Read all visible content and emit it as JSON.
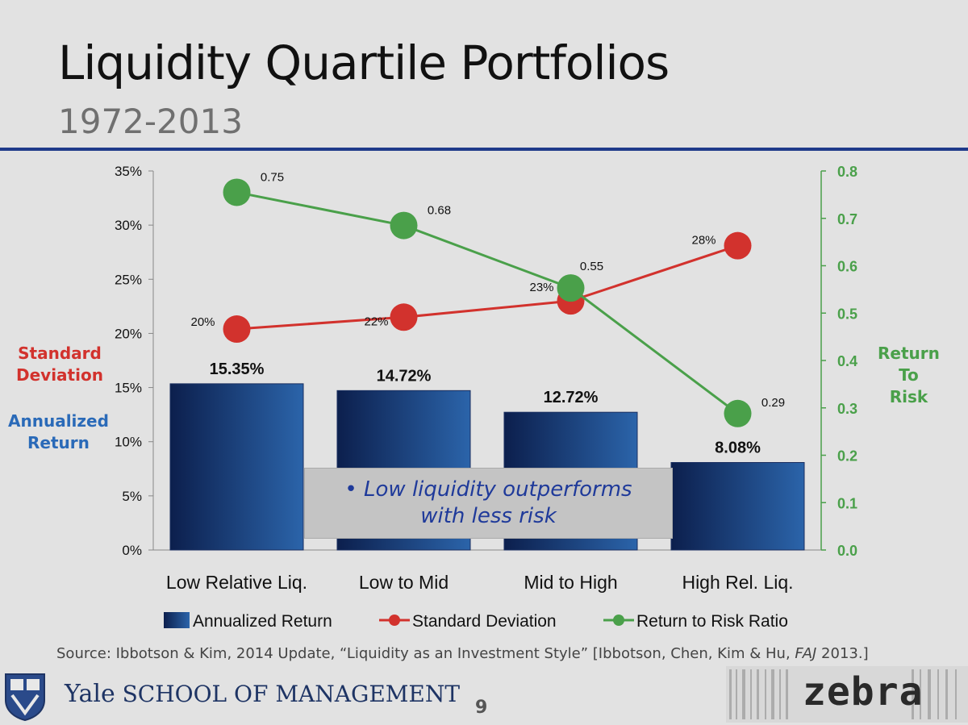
{
  "header": {
    "title": "Liquidity Quartile Portfolios",
    "subtitle": "1972-2013"
  },
  "side_labels": {
    "std_line1": "Standard",
    "std_line2": "Deviation",
    "ann_line1": "Annualized",
    "ann_line2": "Return",
    "rtr_line1": "Return",
    "rtr_line2": "To",
    "rtr_line3": "Risk"
  },
  "callout": {
    "line1": "• Low liquidity outperforms",
    "line2": "with less risk"
  },
  "footer": {
    "source_text": "Source: Ibbotson & Kim, 2014 Update, “Liquidity as an Investment Style” [Ibbotson, Chen, Kim & Hu, ",
    "source_journal": "FAJ",
    "source_end": " 2013.]",
    "school_yale": "Yale",
    "school_name": "SCHOOL OF MANAGEMENT",
    "page_number": "9",
    "zebra": "zebra"
  },
  "colors": {
    "bar_dark": "#0c1f4d",
    "bar_light": "#2b64aa",
    "std_line": "#d2322d",
    "ratio_line": "#4aa04a",
    "accent_rule": "#1f3a8a"
  },
  "chart_data": {
    "type": "bar",
    "categories": [
      "Low Relative Liq.",
      "Low to Mid",
      "Mid to High",
      "High Rel. Liq."
    ],
    "series": [
      {
        "name": "Annualized Return",
        "type": "bar",
        "axis": "left",
        "values": [
          15.35,
          14.72,
          12.72,
          8.08
        ],
        "labels": [
          "15.35%",
          "14.72%",
          "12.72%",
          "8.08%"
        ]
      },
      {
        "name": "Standard Deviation",
        "type": "line",
        "axis": "left",
        "values": [
          20.4,
          21.5,
          23.0,
          28.1
        ],
        "labels": [
          "20%",
          "22%",
          "23%",
          "28%"
        ]
      },
      {
        "name": "Return to Risk Ratio",
        "type": "line",
        "axis": "right",
        "values": [
          0.755,
          0.685,
          0.553,
          0.288
        ],
        "labels": [
          "0.75",
          "0.68",
          "0.55",
          "0.29"
        ]
      }
    ],
    "y_left": {
      "ylim": [
        0,
        35
      ],
      "ticks": [
        0,
        5,
        10,
        15,
        20,
        25,
        30,
        35
      ],
      "tick_labels": [
        "0%",
        "5%",
        "10%",
        "15%",
        "20%",
        "25%",
        "30%",
        "35%"
      ]
    },
    "y_right": {
      "ylim": [
        0,
        0.8
      ],
      "ticks": [
        0,
        0.1,
        0.2,
        0.3,
        0.4,
        0.5,
        0.6,
        0.7,
        0.8
      ],
      "tick_labels": [
        "0.0",
        "0.1",
        "0.2",
        "0.3",
        "0.4",
        "0.5",
        "0.6",
        "0.7",
        "0.8"
      ]
    },
    "legend_position": "bottom",
    "grid": false
  }
}
